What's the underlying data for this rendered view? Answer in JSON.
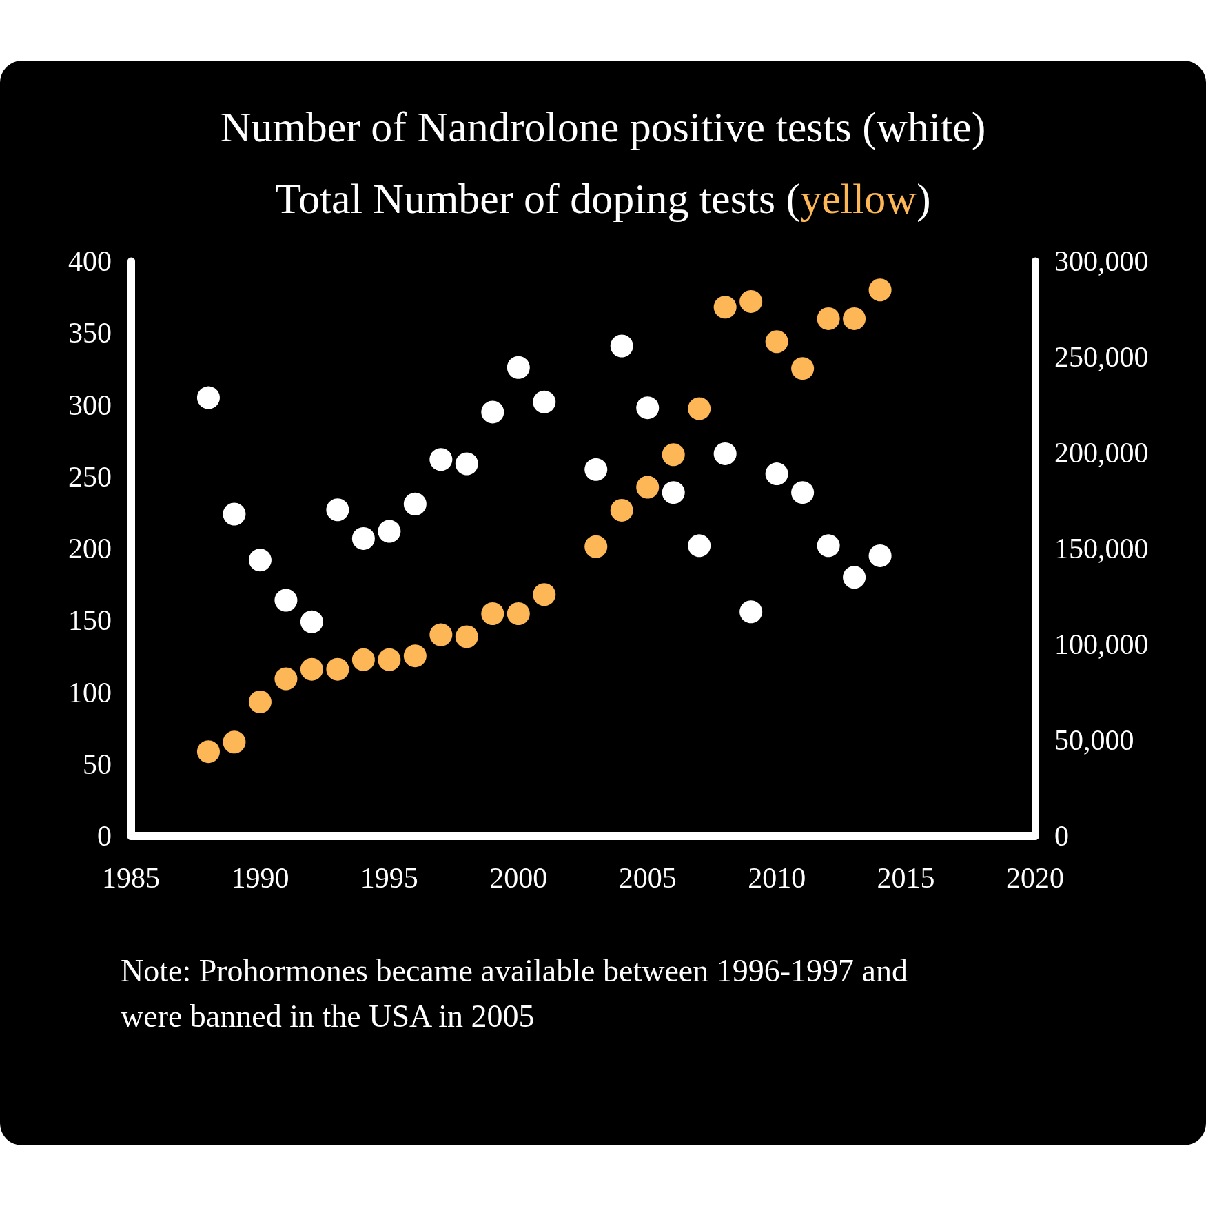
{
  "chart_data": {
    "type": "scatter",
    "title": "Number of Nandrolone positive tests (white)",
    "subtitle": "Total Number of doping tests (yellow)",
    "x": [
      1988,
      1989,
      1990,
      1991,
      1992,
      1993,
      1994,
      1995,
      1996,
      1997,
      1998,
      1999,
      2000,
      2001,
      2003,
      2004,
      2005,
      2006,
      2007,
      2008,
      2009,
      2010,
      2011,
      2012,
      2013,
      2014
    ],
    "series": [
      {
        "color": "#ffffff",
        "values": [
          305,
          224,
          192,
          164,
          149,
          227,
          207,
          212,
          231,
          262,
          259,
          295,
          326,
          302,
          255,
          341,
          298,
          239,
          202,
          266,
          156,
          252,
          239,
          202,
          180,
          195
        ]
      },
      {
        "color": "#fdb756",
        "axis": "y2",
        "values": [
          44000,
          49000,
          70000,
          82000,
          87000,
          87000,
          92000,
          92000,
          94000,
          105000,
          104000,
          116000,
          116000,
          126000,
          151000,
          170000,
          182000,
          199000,
          223000,
          276000,
          279000,
          258000,
          244000,
          270000,
          270000,
          285000
        ]
      }
    ],
    "xlim": [
      1985,
      2020
    ],
    "xticks": [
      1985,
      1990,
      1995,
      2000,
      2005,
      2010,
      2015,
      2020
    ],
    "ylim": [
      0,
      400
    ],
    "yticks": [
      0,
      50,
      100,
      150,
      200,
      250,
      300,
      350,
      400
    ],
    "y2lim": [
      0,
      300000
    ],
    "y2ticks": [
      0,
      {
        "value": 50000,
        "label": "50,000"
      },
      {
        "value": 100000,
        "label": "100,000"
      },
      {
        "value": 150000,
        "label": "150,000"
      },
      {
        "value": 200000,
        "label": "200,000"
      },
      {
        "value": 250000,
        "label": "250,000"
      },
      {
        "value": 300000,
        "label": "300,000"
      }
    ],
    "annotations": [
      "Note: Prohormones became available between 1996-1997 and were banned in the USA in 2005"
    ],
    "grid": false,
    "marker": "circle"
  }
}
